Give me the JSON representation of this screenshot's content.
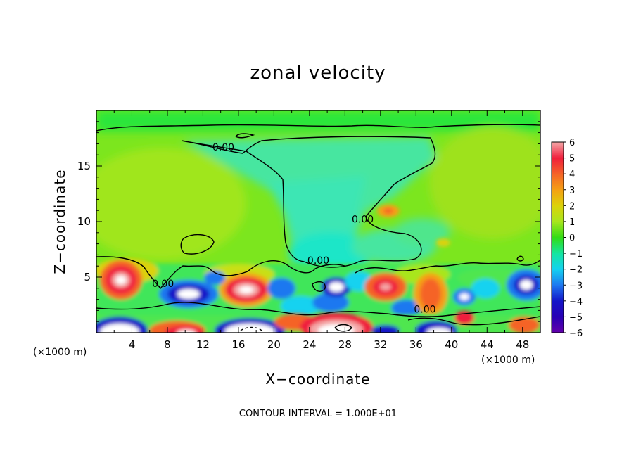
{
  "chart_data": {
    "type": "heatmap",
    "title": "zonal velocity",
    "xlabel": "X−coordinate",
    "ylabel": "Z−coordinate",
    "x_unit_left": "(×1000 m)",
    "x_unit_right": "(×1000 m)",
    "xlim": [
      0,
      50
    ],
    "ylim": [
      0,
      20
    ],
    "xticks": [
      4,
      8,
      12,
      16,
      20,
      24,
      28,
      32,
      36,
      40,
      44,
      48
    ],
    "yticks": [
      5,
      10,
      15
    ],
    "colorbar": {
      "ticks": [
        6,
        5,
        4,
        3,
        2,
        1,
        0,
        -1,
        -2,
        -3,
        -4,
        -5,
        -6
      ],
      "tick_labels": [
        "6",
        "5",
        "4",
        "3",
        "2",
        "1",
        "0",
        "−1",
        "−2",
        "−3",
        "−4",
        "−5",
        "−6"
      ],
      "colors": [
        "#f4a8a8",
        "#f01e3c",
        "#f56428",
        "#f5a014",
        "#dcd20a",
        "#a8e61e",
        "#32dc14",
        "#14e6a0",
        "#14d2f0",
        "#1e78f0",
        "#1414c8",
        "#2800b4",
        "#6400aa"
      ]
    },
    "contour_labels": [
      {
        "text": "0.00",
        "x": 14.3,
        "y": 16.4
      },
      {
        "text": "0.00",
        "x": 30.0,
        "y": 9.9
      },
      {
        "text": "0.00",
        "x": 25.0,
        "y": 6.2
      },
      {
        "text": "0.00",
        "x": 7.5,
        "y": 4.1
      },
      {
        "text": "0.00",
        "x": 37.0,
        "y": 1.8
      }
    ],
    "features": [
      {
        "x": 4.5,
        "y": 4.6,
        "value": 5.5
      },
      {
        "x": 10.5,
        "y": 3.3,
        "value": -4.5
      },
      {
        "x": 16.5,
        "y": 3.8,
        "value": 5.5
      },
      {
        "x": 21.5,
        "y": 1.0,
        "value": 4.5
      },
      {
        "x": 27.0,
        "y": 4.2,
        "value": -4.5
      },
      {
        "x": 32.5,
        "y": 4.0,
        "value": 4.0
      },
      {
        "x": 37.5,
        "y": 3.0,
        "value": 3.5
      },
      {
        "x": 40.5,
        "y": 3.0,
        "value": -3.0
      },
      {
        "x": 47.5,
        "y": 4.5,
        "value": -4.5
      },
      {
        "x": 33.0,
        "y": 11.0,
        "value": 3.0
      },
      {
        "x": 24.5,
        "y": 6.5,
        "value": -1.5
      }
    ],
    "annotation": "CONTOUR INTERVAL = 1.000E+01"
  }
}
